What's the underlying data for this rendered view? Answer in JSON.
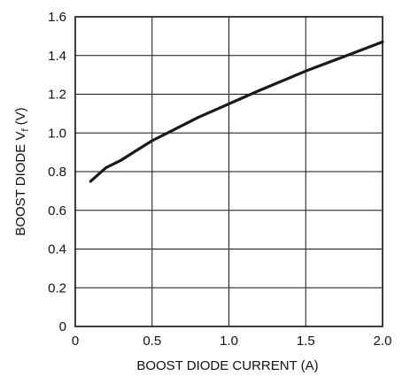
{
  "chart_data": {
    "type": "line",
    "title": "",
    "xlabel": "BOOST DIODE CURRENT (A)",
    "ylabel_prefix": "BOOST DIODE V",
    "ylabel_subscript": "f",
    "ylabel_suffix": " (V)",
    "xlim": [
      0,
      2.0
    ],
    "ylim": [
      0,
      1.6
    ],
    "xticks": [
      "0",
      "0.5",
      "1.0",
      "1.5",
      "2.0"
    ],
    "yticks": [
      "0",
      "0.2",
      "0.4",
      "0.6",
      "0.8",
      "1.0",
      "1.2",
      "1.4",
      "1.6"
    ],
    "grid": true,
    "series": [
      {
        "x": [
          0.1,
          0.2,
          0.3,
          0.4,
          0.5,
          0.6,
          0.8,
          1.0,
          1.2,
          1.5,
          1.8,
          2.0
        ],
        "y": [
          0.75,
          0.82,
          0.86,
          0.91,
          0.96,
          1.0,
          1.08,
          1.15,
          1.22,
          1.32,
          1.41,
          1.47
        ]
      }
    ]
  }
}
